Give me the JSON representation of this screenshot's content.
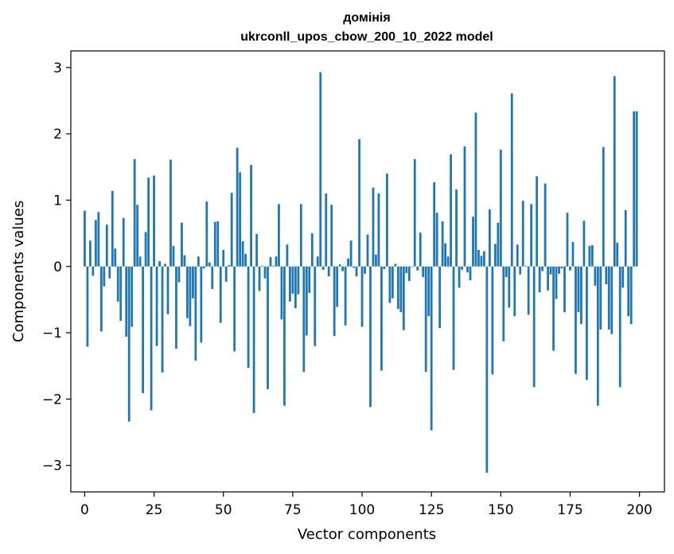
{
  "chart_data": {
    "type": "bar",
    "title": "домінія",
    "subtitle": "ukrconll_upos_cbow_200_10_2022 model",
    "xlabel": "Vector components",
    "ylabel": "Components values",
    "xlim": [
      -5,
      209
    ],
    "ylim": [
      -3.4,
      3.25
    ],
    "xticks": [
      0,
      25,
      50,
      75,
      100,
      125,
      150,
      175,
      200
    ],
    "yticks": [
      -3,
      -2,
      -1,
      0,
      1,
      2,
      3
    ],
    "bar_color": "#1f77b4",
    "grid": false,
    "legend": "none",
    "x": [
      0,
      1,
      2,
      3,
      4,
      5,
      6,
      7,
      8,
      9,
      10,
      11,
      12,
      13,
      14,
      15,
      16,
      17,
      18,
      19,
      20,
      21,
      22,
      23,
      24,
      25,
      26,
      27,
      28,
      29,
      30,
      31,
      32,
      33,
      34,
      35,
      36,
      37,
      38,
      39,
      40,
      41,
      42,
      43,
      44,
      45,
      46,
      47,
      48,
      49,
      50,
      51,
      52,
      53,
      54,
      55,
      56,
      57,
      58,
      59,
      60,
      61,
      62,
      63,
      64,
      65,
      66,
      67,
      68,
      69,
      70,
      71,
      72,
      73,
      74,
      75,
      76,
      77,
      78,
      79,
      80,
      81,
      82,
      83,
      84,
      85,
      86,
      87,
      88,
      89,
      90,
      91,
      92,
      93,
      94,
      95,
      96,
      97,
      98,
      99,
      100,
      101,
      102,
      103,
      104,
      105,
      106,
      107,
      108,
      109,
      110,
      111,
      112,
      113,
      114,
      115,
      116,
      117,
      118,
      119,
      120,
      121,
      122,
      123,
      124,
      125,
      126,
      127,
      128,
      129,
      130,
      131,
      132,
      133,
      134,
      135,
      136,
      137,
      138,
      139,
      140,
      141,
      142,
      143,
      144,
      145,
      146,
      147,
      148,
      149,
      150,
      151,
      152,
      153,
      154,
      155,
      156,
      157,
      158,
      159,
      160,
      161,
      162,
      163,
      164,
      165,
      166,
      167,
      168,
      169,
      170,
      171,
      172,
      173,
      174,
      175,
      176,
      177,
      178,
      179,
      180,
      181,
      182,
      183,
      184,
      185,
      186,
      187,
      188,
      189,
      190,
      191,
      192,
      193,
      194,
      195,
      196,
      197,
      198,
      199
    ],
    "values": [
      0.84,
      -1.21,
      0.39,
      -0.14,
      0.7,
      0.82,
      -0.98,
      -0.3,
      0.63,
      -0.18,
      1.14,
      0.27,
      -0.53,
      -0.82,
      0.73,
      -1.06,
      -2.34,
      -0.91,
      1.62,
      0.93,
      0.15,
      -1.91,
      0.52,
      1.34,
      -2.17,
      1.37,
      -1.2,
      0.08,
      -1.6,
      0.04,
      -0.72,
      1.61,
      0.31,
      -1.24,
      -0.24,
      0.66,
      0.17,
      -0.78,
      -0.9,
      -0.48,
      -1.42,
      0.15,
      -1.15,
      -0.03,
      0.98,
      0.06,
      -0.34,
      0.67,
      0.68,
      -0.85,
      0.25,
      -0.23,
      0.02,
      1.11,
      -1.28,
      1.79,
      1.42,
      0.38,
      0.19,
      -1.53,
      1.53,
      -2.21,
      0.49,
      -0.37,
      0.01,
      -0.18,
      -1.85,
      0.14,
      0.01,
      0.15,
      0.94,
      -0.8,
      -2.1,
      0.33,
      -0.53,
      -0.41,
      -0.63,
      -0.42,
      0.94,
      -1.59,
      -1.04,
      -0.4,
      0.5,
      -1.2,
      0.15,
      2.93,
      -0.05,
      1.1,
      -0.15,
      0.93,
      -1.05,
      -0.61,
      0.03,
      -0.07,
      -0.89,
      0.12,
      0.39,
      -0.02,
      -0.15,
      1.92,
      -0.91,
      -0.11,
      0.48,
      -2.12,
      1.19,
      0.18,
      1.1,
      -1.57,
      -0.04,
      1.4,
      -0.55,
      -0.48,
      0.04,
      -0.64,
      -0.69,
      -0.96,
      -0.1,
      -0.22,
      -0.01,
      1.62,
      -0.06,
      0.51,
      -0.16,
      -1.59,
      -0.75,
      -2.47,
      1.27,
      0.81,
      -0.93,
      0.68,
      0.35,
      0.15,
      1.69,
      -1.56,
      1.16,
      -0.32,
      -0.05,
      1.81,
      -0.09,
      -0.21,
      0.75,
      2.32,
      0.25,
      0.16,
      0.23,
      -3.11,
      0.86,
      -1.63,
      0.34,
      0.66,
      1.76,
      -1.13,
      -0.16,
      -0.62,
      2.61,
      -0.75,
      0.33,
      -0.12,
      0.99,
      0.01,
      -0.73,
      0.94,
      -1.82,
      1.36,
      -0.39,
      -0.07,
      1.25,
      -0.36,
      -0.12,
      -1.27,
      -0.49,
      -0.11,
      -0.03,
      -0.69,
      0.81,
      -0.06,
      0.37,
      -1.62,
      -0.69,
      -0.87,
      0.69,
      -1.71,
      0.31,
      0.32,
      -0.29,
      -2.1,
      -0.95,
      1.8,
      -0.27,
      -0.95,
      -1.02,
      2.87,
      0.36,
      -1.82,
      -0.32,
      0.85,
      -0.75,
      -0.87,
      2.34,
      2.34
    ]
  }
}
